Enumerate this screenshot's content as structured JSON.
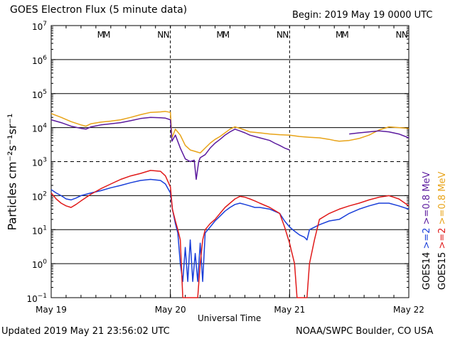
{
  "header": {
    "title": "GOES Electron Flux (5 minute data)",
    "begin": "Begin: 2019 May 19 0000 UTC"
  },
  "footer": {
    "updated": "Updated 2019 May 21 23:56:02 UTC",
    "credit": "NOAA/SWPC Boulder, CO USA"
  },
  "chart_data": {
    "type": "line",
    "title": "GOES Electron Flux (5 minute data)",
    "xlabel": "Universal Time",
    "ylabel": "Particles cm⁻²s⁻¹sr⁻¹",
    "x_unit": "hours since 2019 May 19 0000 UTC",
    "xlim": [
      0,
      72
    ],
    "ylim": [
      0.1,
      10000000
    ],
    "yscale": "log",
    "x_ticks": [
      {
        "x": 0,
        "label": "May 19"
      },
      {
        "x": 24,
        "label": "May 20"
      },
      {
        "x": 48,
        "label": "May 21"
      },
      {
        "x": 72,
        "label": "May 22"
      }
    ],
    "y_ticks": [
      {
        "exp": -1,
        "base": "10",
        "sup": "−1"
      },
      {
        "exp": 0,
        "base": "10",
        "sup": "0"
      },
      {
        "exp": 1,
        "base": "10",
        "sup": "1"
      },
      {
        "exp": 2,
        "base": "10",
        "sup": "2"
      },
      {
        "exp": 3,
        "base": "10",
        "sup": "3"
      },
      {
        "exp": 4,
        "base": "10",
        "sup": "4"
      },
      {
        "exp": 5,
        "base": "10",
        "sup": "5"
      },
      {
        "exp": 6,
        "base": "10",
        "sup": "6"
      },
      {
        "exp": 7,
        "base": "10",
        "sup": "7"
      }
    ],
    "gridlines_y": [
      0,
      1,
      2,
      3,
      4,
      5,
      6
    ],
    "dashed_gridline_exp": 3,
    "day_dividers": [
      24,
      48
    ],
    "markers": [
      {
        "x": 10.0,
        "label": "M",
        "color": "#1a3fd9"
      },
      {
        "x": 11.2,
        "label": "M",
        "color": "#e01a1a"
      },
      {
        "x": 22.0,
        "label": "N",
        "color": "#1a3fd9"
      },
      {
        "x": 23.2,
        "label": "N",
        "color": "#e01a1a"
      },
      {
        "x": 34.0,
        "label": "M",
        "color": "#1a3fd9"
      },
      {
        "x": 35.2,
        "label": "M",
        "color": "#e01a1a"
      },
      {
        "x": 46.0,
        "label": "N",
        "color": "#1a3fd9"
      },
      {
        "x": 47.2,
        "label": "N",
        "color": "#e01a1a"
      },
      {
        "x": 58.0,
        "label": "M",
        "color": "#1a3fd9"
      },
      {
        "x": 59.2,
        "label": "M",
        "color": "#e01a1a"
      },
      {
        "x": 70.0,
        "label": "N",
        "color": "#1a3fd9"
      },
      {
        "x": 71.2,
        "label": "N",
        "color": "#e01a1a"
      }
    ],
    "legend": [
      {
        "label": "GOES14",
        "color": "#000000"
      },
      {
        "label": ">=2",
        "color": "#1a3fd9"
      },
      {
        "label": ">=0.8 MeV",
        "color": "#5b1a9e"
      },
      {
        "label": "GOES15",
        "color": "#000000"
      },
      {
        "label": ">=2",
        "color": "#e01a1a"
      },
      {
        "label": ">=0.8 MeV",
        "color": "#e8a317"
      }
    ],
    "series": [
      {
        "satellite": "GOES15",
        "channel": ">=0.8 MeV",
        "color": "#e8a317",
        "points": [
          [
            0,
            26000
          ],
          [
            2,
            20000
          ],
          [
            4,
            15000
          ],
          [
            6,
            12000
          ],
          [
            7,
            11000
          ],
          [
            8,
            13000
          ],
          [
            10,
            14500
          ],
          [
            12,
            15500
          ],
          [
            14,
            17000
          ],
          [
            16,
            20000
          ],
          [
            18,
            24000
          ],
          [
            20,
            28000
          ],
          [
            22,
            29000
          ],
          [
            23,
            30000
          ],
          [
            24,
            28000
          ],
          [
            24.3,
            5000
          ],
          [
            25,
            9000
          ],
          [
            26,
            6000
          ],
          [
            27,
            3000
          ],
          [
            28,
            2200
          ],
          [
            29,
            2000
          ],
          [
            30,
            1800
          ],
          [
            31,
            2500
          ],
          [
            32,
            3500
          ],
          [
            33,
            4500
          ],
          [
            34,
            5500
          ],
          [
            35,
            7000
          ],
          [
            36,
            9000
          ],
          [
            37,
            10500
          ],
          [
            38,
            9500
          ],
          [
            39,
            8500
          ],
          [
            40,
            7500
          ],
          [
            42,
            7000
          ],
          [
            44,
            6500
          ],
          [
            46,
            6200
          ],
          [
            48,
            6000
          ],
          [
            50,
            5500
          ],
          [
            52,
            5200
          ],
          [
            54,
            5000
          ],
          [
            56,
            4500
          ],
          [
            57,
            4200
          ],
          [
            58,
            4000
          ],
          [
            60,
            4200
          ],
          [
            62,
            4800
          ],
          [
            64,
            6000
          ],
          [
            66,
            8500
          ],
          [
            68,
            10500
          ],
          [
            70,
            10000
          ],
          [
            72,
            9500
          ]
        ]
      },
      {
        "satellite": "GOES14",
        "channel": ">=0.8 MeV",
        "color": "#5b1a9e",
        "points": [
          [
            0,
            17000
          ],
          [
            2,
            14000
          ],
          [
            4,
            11000
          ],
          [
            6,
            9500
          ],
          [
            7,
            9000
          ],
          [
            8,
            10500
          ],
          [
            10,
            12000
          ],
          [
            12,
            13000
          ],
          [
            14,
            14000
          ],
          [
            16,
            16000
          ],
          [
            18,
            18500
          ],
          [
            20,
            20000
          ],
          [
            22,
            19500
          ],
          [
            23,
            19000
          ],
          [
            24,
            17000
          ],
          [
            24.3,
            4000
          ],
          [
            25,
            6000
          ],
          [
            26,
            2500
          ],
          [
            27,
            1200
          ],
          [
            28,
            1000
          ],
          [
            28.8,
            1100
          ],
          [
            29.2,
            300
          ],
          [
            29.7,
            1000
          ],
          [
            30,
            1300
          ],
          [
            31,
            1600
          ],
          [
            32,
            2500
          ],
          [
            33,
            3500
          ],
          [
            34,
            4500
          ],
          [
            35,
            6000
          ],
          [
            36,
            7500
          ],
          [
            37,
            9000
          ],
          [
            38,
            8000
          ],
          [
            39,
            7000
          ],
          [
            40,
            6000
          ],
          [
            42,
            5000
          ],
          [
            44,
            4200
          ],
          [
            45,
            3500
          ],
          [
            46,
            3000
          ],
          [
            47,
            2500
          ],
          [
            48,
            2200
          ],
          [
            48.5,
            null
          ],
          [
            58,
            null
          ],
          [
            60,
            6500
          ],
          [
            62,
            7000
          ],
          [
            64,
            7500
          ],
          [
            66,
            8000
          ],
          [
            68,
            7500
          ],
          [
            70,
            6500
          ],
          [
            72,
            5000
          ]
        ]
      },
      {
        "satellite": "GOES14",
        "channel": ">=2 MeV",
        "color": "#1a3fd9",
        "points": [
          [
            0,
            150
          ],
          [
            1,
            120
          ],
          [
            2,
            100
          ],
          [
            3,
            80
          ],
          [
            4,
            75
          ],
          [
            5,
            85
          ],
          [
            6,
            100
          ],
          [
            8,
            120
          ],
          [
            10,
            140
          ],
          [
            12,
            170
          ],
          [
            14,
            200
          ],
          [
            16,
            240
          ],
          [
            18,
            280
          ],
          [
            20,
            300
          ],
          [
            22,
            280
          ],
          [
            23,
            220
          ],
          [
            24,
            120
          ],
          [
            24.4,
            40
          ],
          [
            25,
            15
          ],
          [
            25.5,
            8
          ],
          [
            26,
            1
          ],
          [
            26.5,
            0.3
          ],
          [
            27,
            3
          ],
          [
            27.5,
            0.3
          ],
          [
            28,
            5
          ],
          [
            28.5,
            0.3
          ],
          [
            29,
            2
          ],
          [
            29.5,
            0.3
          ],
          [
            30,
            4
          ],
          [
            30.5,
            0.3
          ],
          [
            31,
            8
          ],
          [
            32,
            12
          ],
          [
            33,
            18
          ],
          [
            34,
            25
          ],
          [
            35,
            35
          ],
          [
            36,
            45
          ],
          [
            37,
            55
          ],
          [
            38,
            60
          ],
          [
            39,
            55
          ],
          [
            40,
            50
          ],
          [
            41,
            45
          ],
          [
            42,
            45
          ],
          [
            44,
            40
          ],
          [
            46,
            30
          ],
          [
            47,
            18
          ],
          [
            48,
            12
          ],
          [
            49,
            9
          ],
          [
            50,
            7
          ],
          [
            51,
            6
          ],
          [
            51.5,
            5
          ],
          [
            52,
            10
          ],
          [
            54,
            14
          ],
          [
            56,
            18
          ],
          [
            58,
            20
          ],
          [
            60,
            30
          ],
          [
            62,
            40
          ],
          [
            64,
            50
          ],
          [
            66,
            60
          ],
          [
            68,
            60
          ],
          [
            70,
            50
          ],
          [
            72,
            40
          ]
        ]
      },
      {
        "satellite": "GOES15",
        "channel": ">=2 MeV",
        "color": "#e01a1a",
        "points": [
          [
            0,
            120
          ],
          [
            1,
            80
          ],
          [
            2,
            60
          ],
          [
            3,
            50
          ],
          [
            4,
            45
          ],
          [
            5,
            55
          ],
          [
            6,
            70
          ],
          [
            8,
            110
          ],
          [
            10,
            160
          ],
          [
            12,
            220
          ],
          [
            14,
            300
          ],
          [
            16,
            380
          ],
          [
            18,
            450
          ],
          [
            20,
            550
          ],
          [
            22,
            520
          ],
          [
            23,
            380
          ],
          [
            24,
            180
          ],
          [
            24.4,
            40
          ],
          [
            25,
            18
          ],
          [
            25.5,
            10
          ],
          [
            26,
            5
          ],
          [
            26.5,
            0.1
          ],
          [
            27,
            0.1
          ],
          [
            28,
            0.1
          ],
          [
            28.5,
            0.1
          ],
          [
            29,
            0.1
          ],
          [
            29.5,
            0.1
          ],
          [
            30,
            1
          ],
          [
            30.5,
            5
          ],
          [
            31,
            10
          ],
          [
            32,
            15
          ],
          [
            33,
            20
          ],
          [
            34,
            30
          ],
          [
            35,
            45
          ],
          [
            36,
            60
          ],
          [
            37,
            80
          ],
          [
            38,
            95
          ],
          [
            39,
            90
          ],
          [
            40,
            80
          ],
          [
            41,
            70
          ],
          [
            42,
            60
          ],
          [
            44,
            45
          ],
          [
            46,
            30
          ],
          [
            47,
            12
          ],
          [
            48,
            4
          ],
          [
            49,
            1
          ],
          [
            49.5,
            0.1
          ],
          [
            50,
            0.1
          ],
          [
            51,
            0.1
          ],
          [
            51.5,
            0.1
          ],
          [
            52,
            1
          ],
          [
            53,
            5
          ],
          [
            54,
            20
          ],
          [
            56,
            30
          ],
          [
            58,
            40
          ],
          [
            60,
            50
          ],
          [
            62,
            60
          ],
          [
            64,
            75
          ],
          [
            66,
            90
          ],
          [
            68,
            100
          ],
          [
            70,
            80
          ],
          [
            72,
            50
          ]
        ]
      }
    ]
  }
}
